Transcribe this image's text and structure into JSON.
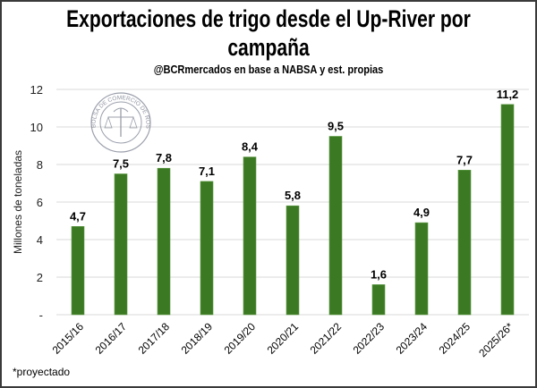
{
  "chart_data": {
    "type": "bar",
    "title_line1": "Exportaciones de trigo desde el Up-River por",
    "title_line2": "campaña",
    "subtitle": "@BCRmercados  en base a NABSA y est. propias",
    "ylabel": "Millones de toneladas",
    "xlabel": "",
    "ylim": [
      0,
      12
    ],
    "yticks": [
      0,
      2,
      4,
      6,
      8,
      10,
      12
    ],
    "ytick_labels": [
      "-",
      "2",
      "4",
      "6",
      "8",
      "10",
      "12"
    ],
    "grid": true,
    "categories": [
      "2015/16",
      "2016/17",
      "2017/18",
      "2018/19",
      "2019/20",
      "2020/21",
      "2021/22",
      "2022/23",
      "2023/24",
      "2024/25",
      "2025/26*"
    ],
    "values": [
      4.7,
      7.5,
      7.8,
      7.1,
      8.4,
      5.8,
      9.5,
      1.6,
      4.9,
      7.7,
      11.2
    ],
    "data_labels": [
      "4,7",
      "7,5",
      "7,8",
      "7,1",
      "8,4",
      "5,8",
      "9,5",
      "1,6",
      "4,9",
      "7,7",
      "11,2"
    ],
    "bar_color": "#3b7a22",
    "footnote": "*proyectado",
    "watermark": "BOLSA DE COMERCIO DE ROSARIO"
  }
}
